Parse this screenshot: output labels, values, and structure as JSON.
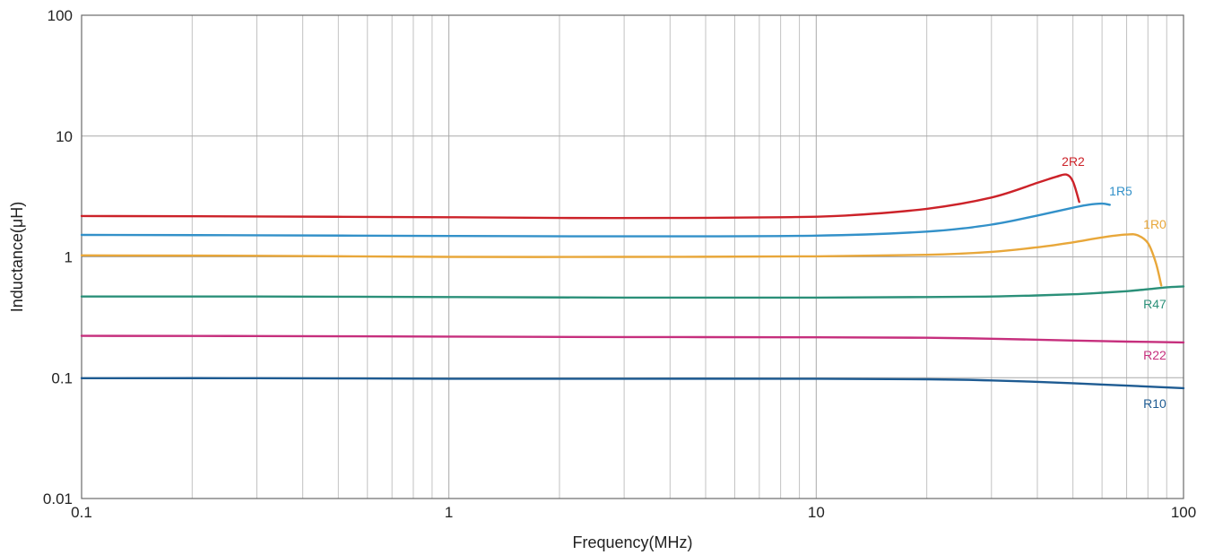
{
  "chart_data": {
    "type": "line",
    "x_scale": "log",
    "y_scale": "log",
    "xlabel": "Frequency(MHz)",
    "ylabel": "Inductance(μH)",
    "xlim": [
      0.1,
      100
    ],
    "ylim": [
      0.01,
      100
    ],
    "grid": true,
    "x_ticks": [
      "0.1",
      "1",
      "10",
      "100"
    ],
    "y_ticks": [
      "0.01",
      "0.1",
      "1",
      "10",
      "100"
    ],
    "series": [
      {
        "name": "2R2",
        "color": "#cc2229",
        "x": [
          0.1,
          0.3,
          1,
          2,
          4,
          8,
          12,
          20,
          30,
          40,
          45,
          48,
          50,
          52
        ],
        "y": [
          2.18,
          2.16,
          2.13,
          2.1,
          2.1,
          2.13,
          2.2,
          2.5,
          3.1,
          4.1,
          4.6,
          4.8,
          4.2,
          2.85
        ]
      },
      {
        "name": "1R5",
        "color": "#3391c9",
        "x": [
          0.1,
          0.3,
          1,
          3,
          10,
          20,
          30,
          40,
          50,
          55,
          60,
          63
        ],
        "y": [
          1.52,
          1.51,
          1.49,
          1.48,
          1.5,
          1.62,
          1.85,
          2.2,
          2.55,
          2.7,
          2.76,
          2.7
        ]
      },
      {
        "name": "1R0",
        "color": "#e8a73a",
        "x": [
          0.1,
          0.3,
          1,
          3,
          10,
          20,
          30,
          40,
          50,
          60,
          70,
          75,
          80,
          84,
          87
        ],
        "y": [
          1.03,
          1.02,
          1.0,
          1.0,
          1.01,
          1.04,
          1.1,
          1.2,
          1.32,
          1.45,
          1.53,
          1.51,
          1.3,
          0.9,
          0.58
        ]
      },
      {
        "name": "R47",
        "color": "#2b9079",
        "x": [
          0.1,
          0.3,
          1,
          3,
          10,
          20,
          30,
          40,
          50,
          60,
          70,
          80,
          90,
          100
        ],
        "y": [
          0.47,
          0.47,
          0.465,
          0.46,
          0.46,
          0.465,
          0.47,
          0.48,
          0.49,
          0.505,
          0.52,
          0.54,
          0.56,
          0.57
        ]
      },
      {
        "name": "R22",
        "color": "#c62f7d",
        "x": [
          0.1,
          0.3,
          1,
          3,
          10,
          20,
          30,
          50,
          70,
          100
        ],
        "y": [
          0.222,
          0.221,
          0.219,
          0.217,
          0.216,
          0.214,
          0.21,
          0.203,
          0.199,
          0.196
        ]
      },
      {
        "name": "R10",
        "color": "#1e5b92",
        "x": [
          0.1,
          0.3,
          1,
          3,
          10,
          20,
          30,
          50,
          70,
          100
        ],
        "y": [
          0.099,
          0.099,
          0.098,
          0.098,
          0.098,
          0.097,
          0.095,
          0.09,
          0.086,
          0.082
        ]
      }
    ],
    "annotations": [
      "2R2",
      "1R5",
      "1R0",
      "R47",
      "R22",
      "R10"
    ]
  }
}
